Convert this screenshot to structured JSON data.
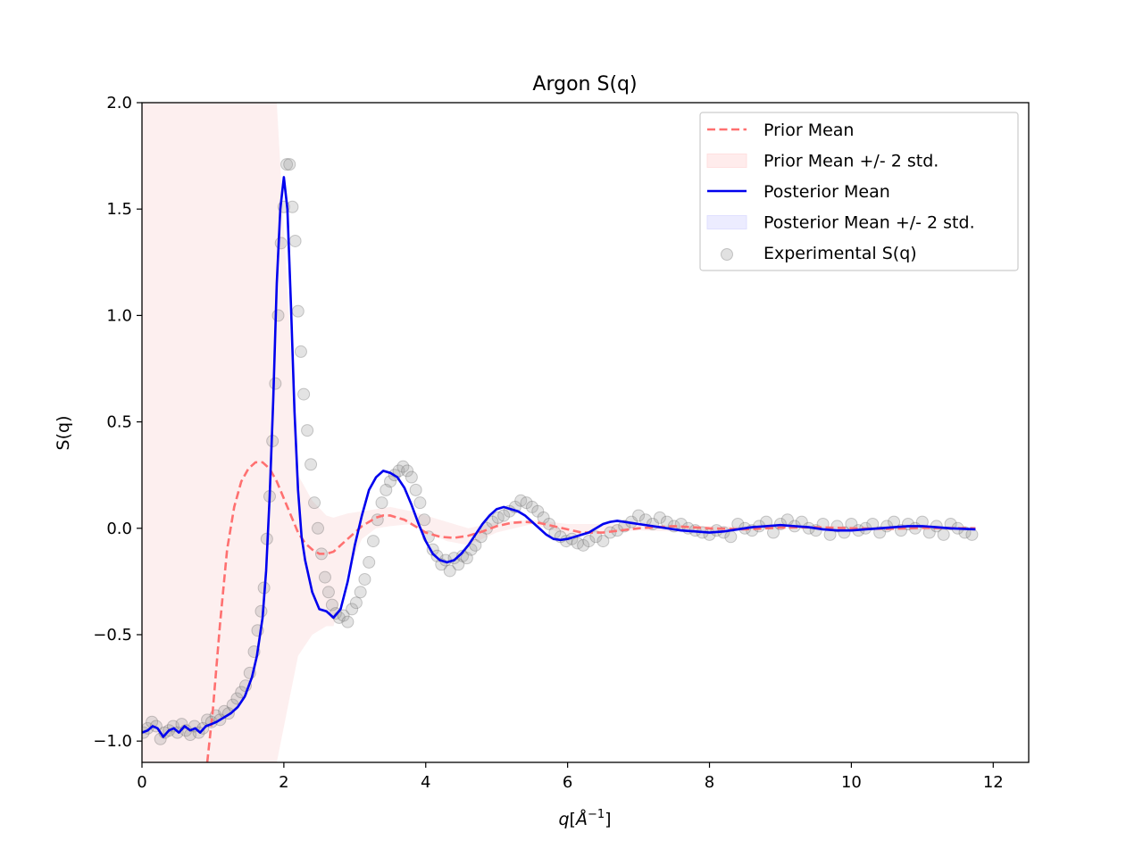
{
  "chart_data": {
    "type": "line",
    "title": "Argon S(q)",
    "xlabel": "q[Å⁻¹]",
    "xlabel_parts": {
      "var": "q",
      "open": "[",
      "unit": "Å",
      "sup": "−1",
      "close": "]"
    },
    "ylabel": "S(q)",
    "xlim": [
      0,
      12.5
    ],
    "ylim": [
      -1.1,
      2.0
    ],
    "xticks": [
      0,
      2,
      4,
      6,
      8,
      10,
      12
    ],
    "xtick_labels": [
      "0",
      "2",
      "4",
      "6",
      "8",
      "10",
      "12"
    ],
    "yticks": [
      -1.0,
      -0.5,
      0.0,
      0.5,
      1.0,
      1.5,
      2.0
    ],
    "ytick_labels": [
      "−1.0",
      "−0.5",
      "0.0",
      "0.5",
      "1.0",
      "1.5",
      "2.0"
    ],
    "grid": false,
    "legend_position": "top-right",
    "legend": [
      {
        "label": "Prior Mean",
        "kind": "dashed-line",
        "color": "#ff7070"
      },
      {
        "label": "Prior Mean +/- 2 std.",
        "kind": "patch",
        "color": "#ffe0e0"
      },
      {
        "label": "Posterior Mean",
        "kind": "line",
        "color": "#0000ee"
      },
      {
        "label": "Posterior Mean +/- 2 std.",
        "kind": "patch",
        "color": "#e0e0ff"
      },
      {
        "label": "Experimental S(q)",
        "kind": "marker",
        "color": "#9a9a9a"
      }
    ],
    "series": [
      {
        "name": "Prior Mean",
        "style": "dashed",
        "color": "#ff7070",
        "x": [
          0.92,
          1.0,
          1.1,
          1.2,
          1.3,
          1.4,
          1.5,
          1.6,
          1.7,
          1.8,
          1.9,
          2.0,
          2.1,
          2.2,
          2.3,
          2.4,
          2.5,
          2.6,
          2.7,
          2.8,
          2.9,
          3.0,
          3.1,
          3.2,
          3.3,
          3.4,
          3.5,
          3.6,
          3.7,
          3.8,
          3.9,
          4.0,
          4.2,
          4.4,
          4.6,
          4.8,
          5.0,
          5.2,
          5.4,
          5.6,
          5.8,
          6.0,
          6.2,
          6.5,
          7.0,
          7.5,
          8.0,
          8.5,
          9.0,
          9.5,
          10.0,
          10.5,
          11.0,
          11.75
        ],
        "y": [
          -1.1,
          -0.85,
          -0.45,
          -0.1,
          0.1,
          0.22,
          0.28,
          0.31,
          0.31,
          0.28,
          0.22,
          0.14,
          0.06,
          -0.02,
          -0.07,
          -0.1,
          -0.12,
          -0.12,
          -0.11,
          -0.08,
          -0.05,
          -0.02,
          0.01,
          0.03,
          0.05,
          0.06,
          0.06,
          0.05,
          0.04,
          0.02,
          0.0,
          -0.02,
          -0.04,
          -0.045,
          -0.035,
          -0.015,
          0.01,
          0.025,
          0.03,
          0.025,
          0.01,
          -0.005,
          -0.02,
          -0.02,
          0.0,
          0.01,
          0.0,
          -0.005,
          0.003,
          0.005,
          0.0,
          -0.003,
          0.002,
          0.0
        ]
      },
      {
        "name": "Prior Mean +/- 2 std.",
        "style": "band",
        "color": "#fbdcdc",
        "opacity": 0.45,
        "x": [
          0.0,
          1.0,
          1.5,
          1.9,
          2.2,
          2.4,
          2.6,
          2.7,
          2.9,
          3.1,
          3.3,
          3.5,
          3.8,
          4.0,
          4.3,
          4.6,
          5.0,
          5.5,
          6.0,
          7.0,
          8.0,
          9.0,
          10.0,
          11.75
        ],
        "upper": [
          2.0,
          2.0,
          2.0,
          2.0,
          0.25,
          0.13,
          0.06,
          0.05,
          0.07,
          0.08,
          0.09,
          0.1,
          0.08,
          0.06,
          0.03,
          0.0,
          0.03,
          0.04,
          0.02,
          0.02,
          0.01,
          0.01,
          0.01,
          0.0
        ],
        "lower": [
          -1.1,
          -1.1,
          -1.1,
          -1.1,
          -0.6,
          -0.5,
          -0.46,
          -0.46,
          -0.2,
          -0.05,
          0.0,
          0.01,
          0.02,
          -0.02,
          -0.06,
          -0.08,
          -0.02,
          0.02,
          -0.03,
          -0.01,
          -0.02,
          0.0,
          -0.01,
          -0.01
        ]
      },
      {
        "name": "Posterior Mean",
        "style": "solid",
        "color": "#0000ee",
        "x": [
          0.0,
          0.08,
          0.15,
          0.22,
          0.3,
          0.38,
          0.45,
          0.52,
          0.6,
          0.68,
          0.75,
          0.82,
          0.9,
          0.98,
          1.05,
          1.15,
          1.25,
          1.35,
          1.45,
          1.55,
          1.62,
          1.7,
          1.75,
          1.8,
          1.85,
          1.9,
          1.95,
          2.0,
          2.05,
          2.1,
          2.15,
          2.2,
          2.25,
          2.3,
          2.4,
          2.5,
          2.6,
          2.7,
          2.8,
          2.9,
          3.0,
          3.1,
          3.2,
          3.3,
          3.4,
          3.5,
          3.6,
          3.7,
          3.8,
          3.9,
          4.0,
          4.1,
          4.2,
          4.3,
          4.4,
          4.5,
          4.6,
          4.7,
          4.8,
          4.9,
          5.0,
          5.1,
          5.2,
          5.3,
          5.4,
          5.5,
          5.6,
          5.7,
          5.8,
          5.9,
          6.0,
          6.1,
          6.2,
          6.3,
          6.4,
          6.5,
          6.6,
          6.7,
          6.8,
          6.9,
          7.0,
          7.2,
          7.4,
          7.6,
          7.8,
          8.0,
          8.2,
          8.4,
          8.6,
          8.8,
          9.0,
          9.2,
          9.4,
          9.6,
          9.8,
          10.0,
          10.2,
          10.4,
          10.6,
          10.8,
          11.0,
          11.2,
          11.4,
          11.75
        ],
        "y": [
          -0.96,
          -0.95,
          -0.93,
          -0.94,
          -0.98,
          -0.95,
          -0.94,
          -0.96,
          -0.93,
          -0.95,
          -0.94,
          -0.96,
          -0.93,
          -0.92,
          -0.91,
          -0.89,
          -0.87,
          -0.84,
          -0.79,
          -0.7,
          -0.6,
          -0.42,
          -0.2,
          0.15,
          0.6,
          1.15,
          1.5,
          1.65,
          1.5,
          1.05,
          0.55,
          0.18,
          -0.04,
          -0.15,
          -0.3,
          -0.38,
          -0.39,
          -0.42,
          -0.38,
          -0.25,
          -0.08,
          0.06,
          0.18,
          0.24,
          0.27,
          0.26,
          0.24,
          0.19,
          0.11,
          0.02,
          -0.06,
          -0.12,
          -0.15,
          -0.16,
          -0.15,
          -0.12,
          -0.08,
          -0.03,
          0.02,
          0.06,
          0.09,
          0.1,
          0.09,
          0.08,
          0.06,
          0.03,
          0.0,
          -0.03,
          -0.05,
          -0.055,
          -0.05,
          -0.04,
          -0.03,
          -0.02,
          0.0,
          0.02,
          0.03,
          0.035,
          0.03,
          0.025,
          0.02,
          0.01,
          0.0,
          -0.01,
          -0.015,
          -0.02,
          -0.015,
          -0.005,
          0.005,
          0.01,
          0.015,
          0.01,
          0.005,
          -0.005,
          -0.01,
          -0.01,
          -0.005,
          0.0,
          0.005,
          0.01,
          0.01,
          0.005,
          0.0,
          -0.005
        ]
      },
      {
        "name": "Posterior Mean +/- 2 std.",
        "style": "band",
        "color": "#e0e0ff",
        "opacity": 0.4,
        "spread": 0.01
      },
      {
        "name": "Experimental S(q)",
        "style": "scatter",
        "color": "#8a8a8a",
        "x": [
          0.02,
          0.08,
          0.14,
          0.2,
          0.26,
          0.32,
          0.38,
          0.44,
          0.5,
          0.56,
          0.62,
          0.68,
          0.74,
          0.8,
          0.86,
          0.92,
          0.98,
          1.04,
          1.1,
          1.16,
          1.22,
          1.28,
          1.34,
          1.4,
          1.46,
          1.52,
          1.58,
          1.63,
          1.68,
          1.72,
          1.76,
          1.8,
          1.84,
          1.88,
          1.92,
          1.96,
          2.0,
          2.04,
          2.08,
          2.12,
          2.16,
          2.2,
          2.24,
          2.28,
          2.33,
          2.38,
          2.43,
          2.48,
          2.53,
          2.58,
          2.63,
          2.68,
          2.73,
          2.78,
          2.84,
          2.9,
          2.96,
          3.02,
          3.08,
          3.14,
          3.2,
          3.26,
          3.32,
          3.38,
          3.44,
          3.5,
          3.56,
          3.62,
          3.68,
          3.74,
          3.8,
          3.86,
          3.92,
          3.98,
          4.04,
          4.1,
          4.16,
          4.22,
          4.28,
          4.34,
          4.4,
          4.46,
          4.52,
          4.58,
          4.64,
          4.7,
          4.78,
          4.86,
          4.94,
          5.02,
          5.1,
          5.18,
          5.26,
          5.34,
          5.42,
          5.5,
          5.58,
          5.66,
          5.74,
          5.82,
          5.9,
          5.98,
          6.06,
          6.14,
          6.22,
          6.3,
          6.4,
          6.5,
          6.6,
          6.7,
          6.8,
          6.9,
          7.0,
          7.1,
          7.2,
          7.3,
          7.4,
          7.5,
          7.6,
          7.7,
          7.8,
          7.9,
          8.0,
          8.1,
          8.2,
          8.3,
          8.4,
          8.5,
          8.6,
          8.7,
          8.8,
          8.9,
          9.0,
          9.1,
          9.2,
          9.3,
          9.4,
          9.5,
          9.6,
          9.7,
          9.8,
          9.9,
          10.0,
          10.1,
          10.2,
          10.3,
          10.4,
          10.5,
          10.6,
          10.7,
          10.8,
          10.9,
          11.0,
          11.1,
          11.2,
          11.3,
          11.4,
          11.5,
          11.6,
          11.7
        ],
        "y": [
          -0.96,
          -0.94,
          -0.91,
          -0.93,
          -0.99,
          -0.96,
          -0.95,
          -0.93,
          -0.96,
          -0.92,
          -0.95,
          -0.97,
          -0.93,
          -0.96,
          -0.94,
          -0.9,
          -0.91,
          -0.88,
          -0.9,
          -0.86,
          -0.87,
          -0.83,
          -0.8,
          -0.77,
          -0.74,
          -0.68,
          -0.58,
          -0.48,
          -0.39,
          -0.28,
          -0.05,
          0.15,
          0.41,
          0.68,
          1.0,
          1.34,
          1.51,
          1.71,
          1.71,
          1.51,
          1.35,
          1.02,
          0.83,
          0.63,
          0.46,
          0.3,
          0.12,
          0.0,
          -0.12,
          -0.23,
          -0.3,
          -0.36,
          -0.4,
          -0.42,
          -0.41,
          -0.44,
          -0.38,
          -0.35,
          -0.3,
          -0.24,
          -0.16,
          -0.06,
          0.04,
          0.12,
          0.18,
          0.22,
          0.25,
          0.27,
          0.29,
          0.27,
          0.24,
          0.18,
          0.12,
          0.04,
          -0.04,
          -0.1,
          -0.13,
          -0.17,
          -0.15,
          -0.2,
          -0.14,
          -0.17,
          -0.13,
          -0.14,
          -0.1,
          -0.08,
          -0.04,
          0.0,
          0.03,
          0.05,
          0.06,
          0.08,
          0.1,
          0.13,
          0.12,
          0.1,
          0.08,
          0.05,
          0.02,
          -0.02,
          -0.04,
          -0.06,
          -0.05,
          -0.07,
          -0.08,
          -0.06,
          -0.04,
          -0.06,
          -0.02,
          -0.01,
          0.01,
          0.03,
          0.06,
          0.04,
          0.02,
          0.05,
          0.03,
          0.01,
          0.02,
          0.0,
          -0.01,
          -0.02,
          -0.03,
          -0.01,
          -0.02,
          -0.04,
          0.02,
          0.0,
          -0.01,
          0.01,
          0.03,
          -0.02,
          0.02,
          0.04,
          0.01,
          0.03,
          0.0,
          -0.01,
          0.02,
          -0.03,
          0.01,
          -0.02,
          0.02,
          -0.01,
          0.0,
          0.02,
          -0.02,
          0.01,
          0.03,
          -0.01,
          0.02,
          0.0,
          0.03,
          -0.02,
          0.01,
          -0.03,
          0.02,
          0.0,
          -0.02,
          -0.03
        ]
      }
    ]
  }
}
